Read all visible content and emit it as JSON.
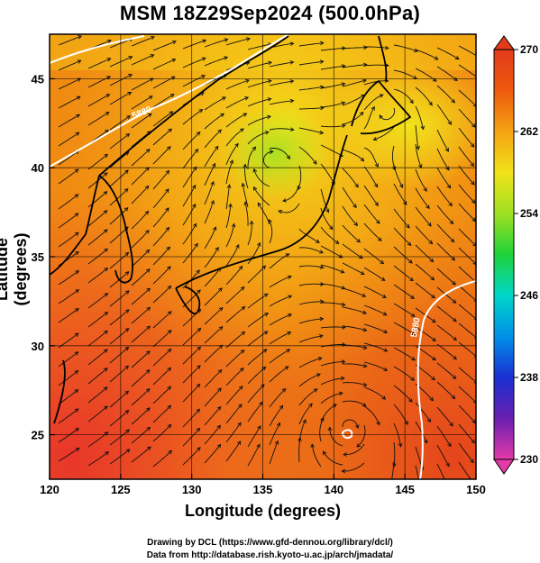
{
  "title": "MSM 18Z29Sep2024 (500.0hPa)",
  "xaxis": {
    "label": "Longitude (degrees)",
    "ticks": [
      "120",
      "125",
      "130",
      "135",
      "140",
      "145",
      "150"
    ],
    "range": [
      120,
      150
    ]
  },
  "yaxis": {
    "label": "Latitude  (degrees)",
    "ticks": [
      "25",
      "30",
      "35",
      "40",
      "45"
    ],
    "range": [
      22.5,
      47.5
    ]
  },
  "colorbar": {
    "ticks": [
      "270",
      "262",
      "254",
      "246",
      "238",
      "230"
    ],
    "min": 230,
    "max": 270,
    "colors": [
      "#e23aa8",
      "#6a1fb0",
      "#1a2fd0",
      "#0090e8",
      "#00d6c8",
      "#1fd23a",
      "#9fe021",
      "#f2e21a",
      "#f4a313",
      "#ee5a0e",
      "#e23a1a"
    ]
  },
  "contour_labels": [
    "5880",
    "5880",
    "5880"
  ],
  "credits": {
    "line1": "Drawing by DCL (https://www.gfd-dennou.org/library/dcl/)",
    "line2": "Data from http://database.rish.kyoto-u.ac.jp/arch/jmadata/"
  },
  "chart_data": {
    "type": "heatmap",
    "title": "MSM 18Z29Sep2024 (500.0hPa)",
    "xlabel": "Longitude (degrees)",
    "ylabel": "Latitude  (degrees)",
    "xlim": [
      120,
      150
    ],
    "ylim": [
      22.5,
      47.5
    ],
    "colorbar_range": [
      230,
      270
    ],
    "contour_level": 5880,
    "vortices": [
      {
        "lon": 135.5,
        "lat": 40.5
      },
      {
        "lon": 144,
        "lat": 43.5
      },
      {
        "lon": 141,
        "lat": 25.5
      }
    ]
  }
}
